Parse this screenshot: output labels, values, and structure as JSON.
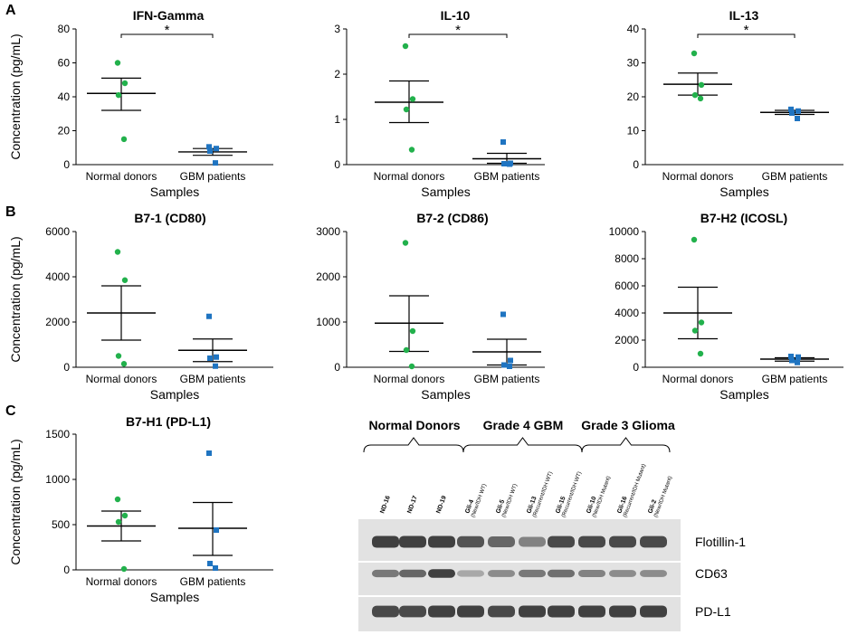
{
  "panel_labels": [
    "A",
    "B",
    "C"
  ],
  "colors": {
    "normal": "#22b14c",
    "gbm": "#1f74c1",
    "axis": "#000000"
  },
  "chart_data": [
    {
      "type": "scatter",
      "id": "ifn-gamma",
      "title": "IFN-Gamma",
      "categories": [
        "Normal donors",
        "GBM patients"
      ],
      "xlabel": "Samples",
      "ylabel": "Concentration (pg/mL)",
      "ylim": [
        0,
        80
      ],
      "yticks": [
        0,
        20,
        40,
        60,
        80
      ],
      "series": [
        {
          "name": "Normal donors",
          "values": [
            60,
            48,
            41,
            15
          ],
          "mean": 42,
          "err": [
            32,
            51
          ]
        },
        {
          "name": "GBM patients",
          "values": [
            10.5,
            9.5,
            8,
            1
          ],
          "mean": 7.5,
          "err": [
            5.5,
            9.5
          ]
        }
      ],
      "significance": "*"
    },
    {
      "type": "scatter",
      "id": "il-10",
      "title": "IL-10",
      "categories": [
        "Normal donors",
        "GBM patients"
      ],
      "xlabel": "Samples",
      "ylabel": "",
      "ylim": [
        0,
        3
      ],
      "yticks": [
        0,
        1,
        2,
        3
      ],
      "series": [
        {
          "name": "Normal donors",
          "values": [
            2.62,
            1.45,
            1.22,
            0.33
          ],
          "mean": 1.38,
          "err": [
            0.93,
            1.85
          ]
        },
        {
          "name": "GBM patients",
          "values": [
            0.5,
            0.03,
            0.02,
            0.01
          ],
          "mean": 0.13,
          "err": [
            0.03,
            0.25
          ]
        }
      ],
      "significance": "*"
    },
    {
      "type": "scatter",
      "id": "il-13",
      "title": "IL-13",
      "categories": [
        "Normal donors",
        "GBM patients"
      ],
      "xlabel": "Samples",
      "ylabel": "",
      "ylim": [
        0,
        40
      ],
      "yticks": [
        0,
        10,
        20,
        30,
        40
      ],
      "series": [
        {
          "name": "Normal donors",
          "values": [
            32.8,
            23.5,
            20.5,
            19.5
          ],
          "mean": 23.7,
          "err": [
            20.5,
            27
          ]
        },
        {
          "name": "GBM patients",
          "values": [
            16.3,
            15.8,
            15.2,
            13.6
          ],
          "mean": 15.4,
          "err": [
            14.8,
            16
          ]
        }
      ],
      "significance": "*"
    },
    {
      "type": "scatter",
      "id": "b7-1",
      "title": "B7-1 (CD80)",
      "categories": [
        "Normal donors",
        "GBM patients"
      ],
      "xlabel": "Samples",
      "ylabel": "Concentration (pg/mL)",
      "ylim": [
        0,
        6000
      ],
      "yticks": [
        0,
        2000,
        4000,
        6000
      ],
      "series": [
        {
          "name": "Normal donors",
          "values": [
            5100,
            3850,
            500,
            150
          ],
          "mean": 2400,
          "err": [
            1200,
            3600
          ]
        },
        {
          "name": "GBM patients",
          "values": [
            2250,
            450,
            400,
            50
          ],
          "mean": 750,
          "err": [
            250,
            1250
          ]
        }
      ],
      "significance": ""
    },
    {
      "type": "scatter",
      "id": "b7-2",
      "title": "B7-2 (CD86)",
      "categories": [
        "Normal donors",
        "GBM patients"
      ],
      "xlabel": "Samples",
      "ylabel": "",
      "ylim": [
        0,
        3000
      ],
      "yticks": [
        0,
        1000,
        2000,
        3000
      ],
      "series": [
        {
          "name": "Normal donors",
          "values": [
            2750,
            800,
            380,
            20
          ],
          "mean": 975,
          "err": [
            350,
            1580
          ]
        },
        {
          "name": "GBM patients",
          "values": [
            1170,
            150,
            50,
            20
          ],
          "mean": 340,
          "err": [
            50,
            620
          ]
        }
      ],
      "significance": ""
    },
    {
      "type": "scatter",
      "id": "b7-h2",
      "title": "B7-H2 (ICOSL)",
      "categories": [
        "Normal donors",
        "GBM patients"
      ],
      "xlabel": "Samples",
      "ylabel": "",
      "ylim": [
        0,
        10000
      ],
      "yticks": [
        0,
        2000,
        4000,
        6000,
        8000,
        10000
      ],
      "series": [
        {
          "name": "Normal donors",
          "values": [
            9400,
            3300,
            2700,
            1000
          ],
          "mean": 4000,
          "err": [
            2100,
            5900
          ]
        },
        {
          "name": "GBM patients",
          "values": [
            800,
            750,
            500,
            350
          ],
          "mean": 600,
          "err": [
            450,
            700
          ]
        }
      ],
      "significance": ""
    },
    {
      "type": "scatter",
      "id": "b7-h1",
      "title": "B7-H1 (PD-L1)",
      "categories": [
        "Normal donors",
        "GBM patients"
      ],
      "xlabel": "Samples",
      "ylabel": "Concentration (pg/mL)",
      "ylim": [
        0,
        1500
      ],
      "yticks": [
        0,
        500,
        1000,
        1500
      ],
      "series": [
        {
          "name": "Normal donors",
          "values": [
            780,
            600,
            530,
            10
          ],
          "mean": 485,
          "err": [
            320,
            650
          ]
        },
        {
          "name": "GBM patients",
          "values": [
            1290,
            440,
            70,
            20
          ],
          "mean": 460,
          "err": [
            160,
            745
          ]
        }
      ],
      "significance": ""
    }
  ],
  "western_blot": {
    "groups": [
      "Normal Donors",
      "Grade 4 GBM",
      "Grade 3 Glioma"
    ],
    "lanes": [
      {
        "id": "ND-16",
        "sub": ""
      },
      {
        "id": "ND-17",
        "sub": ""
      },
      {
        "id": "ND-19",
        "sub": ""
      },
      {
        "id": "Gli-4",
        "sub": "(New/IDH WT)"
      },
      {
        "id": "Gli-5",
        "sub": "(New/IDH WT)"
      },
      {
        "id": "Gli-13",
        "sub": "(Recurrent/IDH WT)"
      },
      {
        "id": "Gli-15",
        "sub": "(Recurrent/IDH WT)"
      },
      {
        "id": "Gli-10",
        "sub": "(New/IDH Mutant)"
      },
      {
        "id": "Gli-16",
        "sub": "(Recurrent/IDH Mutant)"
      },
      {
        "id": "Gli-2",
        "sub": "(New/IDH Mutant)"
      }
    ],
    "bands": [
      {
        "label": "Flotillin-1",
        "intensity": [
          0.85,
          0.85,
          0.85,
          0.75,
          0.65,
          0.5,
          0.8,
          0.8,
          0.8,
          0.8
        ]
      },
      {
        "label": "CD63",
        "intensity": [
          0.55,
          0.65,
          0.85,
          0.3,
          0.45,
          0.55,
          0.6,
          0.5,
          0.45,
          0.45
        ]
      },
      {
        "label": "PD-L1",
        "intensity": [
          0.8,
          0.8,
          0.85,
          0.85,
          0.8,
          0.85,
          0.85,
          0.85,
          0.85,
          0.85
        ]
      }
    ]
  }
}
